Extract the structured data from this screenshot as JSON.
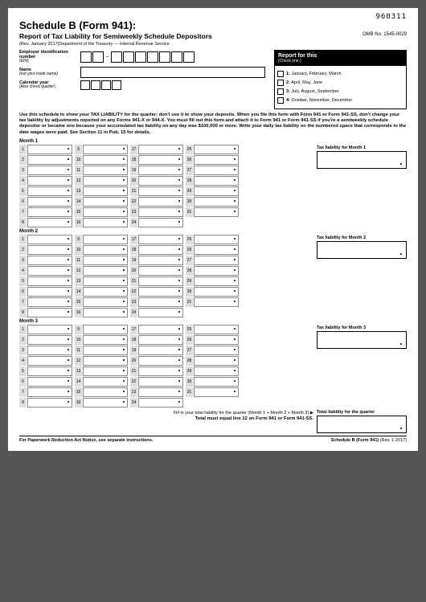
{
  "code": "960311",
  "title": "Schedule B (Form 941):",
  "subtitle": "Report of Tax Liability for Semiweekly Schedule Depositors",
  "revision": "(Rev. January 2017)Department of the Treasury — Internal Revenue Service",
  "omb": "OMB No. 1545-0029",
  "ein_label": "Employer identification number",
  "ein_sub": "(EIN)",
  "name_label": "Name",
  "name_sub": "(not your trade name)",
  "year_label": "Calendar year",
  "year_sub": "(Also check quarter)",
  "report": {
    "head": "Report for this",
    "check": "(Check one.)",
    "options": [
      "1: January, February, March",
      "2: April, May, June",
      "3: July, August, September",
      "4: October, November, December"
    ]
  },
  "instructions": "Use this schedule to show your TAX LIABILITY for the quarter; don't use it to show your deposits. When you file this form with Form 941 or Form 941-SS, don't change your tax liability by adjustments reported on any Forms 941-X or 944-X. You must fill out this form and attach it to Form 941 or Form 941-SS if you're a semiweekly schedule depositor or became one because your accumulated tax liability on any day was $100,000 or more. Write your daily tax liability on the numbered space that corresponds to the date wages were paid. See Section 11 in Pub. 15 for details.",
  "months": [
    {
      "label": "Month 1",
      "total_label": "Tax liability for Month 1"
    },
    {
      "label": "Month 2",
      "total_label": "Tax liability for Month 2"
    },
    {
      "label": "Month 3",
      "total_label": "Tax liability for Month 3"
    }
  ],
  "quarter_total_prompt": "Fill in your total liability for the quarter (Month 1 + Month 2 + Month 3) ▶",
  "quarter_total_label": "Total liability for the quarter",
  "must_equal": "Total must equal line 12 on Form 941 or Form 941-SS.",
  "footer_left": "For Paperwork Reduction Act Notice, see separate instructions.",
  "footer_mid": "Schedule B (Form 941)",
  "footer_right": "(Rev. 1-2017)"
}
